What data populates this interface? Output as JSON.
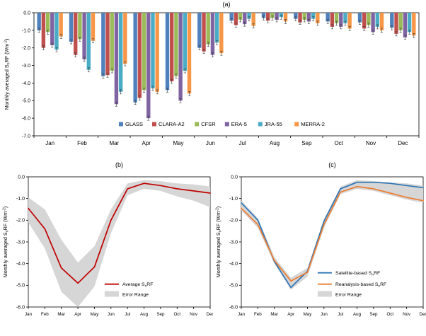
{
  "figure": {
    "background": "#ffffff",
    "axis_color": "#000000",
    "error_bar_color": "#3a3a3a"
  },
  "chart_data": [
    {
      "id": "a",
      "type": "bar",
      "title": "(a)",
      "ylabel": "Monthly averaged S_{n}RF (Wm^{-2})",
      "ylim": [
        0,
        -7
      ],
      "ytick_step": 1,
      "grid": false,
      "legend_position": "inside-bottom-center",
      "categories": [
        "Jan",
        "Feb",
        "Mar",
        "Apr",
        "May",
        "Jun",
        "Jul",
        "Aug",
        "Sep",
        "Oct",
        "Nov",
        "Dec"
      ],
      "bar_error": 0.12,
      "series": [
        {
          "name": "GLASS",
          "color": "#4F81BD",
          "values": [
            -1.0,
            -1.65,
            -3.6,
            -5.1,
            -4.4,
            -2.0,
            -0.45,
            -0.3,
            -0.35,
            -0.5,
            -0.55,
            -0.85
          ]
        },
        {
          "name": "CLARA-A2",
          "color": "#C0504D",
          "values": [
            -2.0,
            -2.4,
            -3.55,
            -4.85,
            -3.9,
            -2.2,
            -0.7,
            -0.45,
            -0.55,
            -0.8,
            -0.9,
            -1.2
          ]
        },
        {
          "name": "CFSR",
          "color": "#9BBB59",
          "values": [
            -1.1,
            -1.5,
            -3.3,
            -4.4,
            -3.6,
            -1.8,
            -0.4,
            -0.3,
            -0.4,
            -0.6,
            -0.7,
            -1.0
          ]
        },
        {
          "name": "ERA-5",
          "color": "#8064A2",
          "values": [
            -1.85,
            -2.65,
            -5.2,
            -6.0,
            -5.0,
            -2.4,
            -0.65,
            -0.4,
            -0.5,
            -0.8,
            -1.1,
            -1.4
          ]
        },
        {
          "name": "JRA-55",
          "color": "#4BACC6",
          "values": [
            -2.1,
            -3.25,
            -4.5,
            -4.3,
            -3.3,
            -1.7,
            -0.35,
            -0.25,
            -0.35,
            -0.6,
            -0.8,
            -1.1
          ]
        },
        {
          "name": "MERRA-2",
          "color": "#F79646",
          "values": [
            -1.35,
            -1.6,
            -2.9,
            -4.5,
            -4.6,
            -2.3,
            -0.75,
            -0.5,
            -0.6,
            -0.9,
            -1.0,
            -1.3
          ]
        }
      ]
    },
    {
      "id": "b",
      "type": "line",
      "title": "(b)",
      "ylabel": "Monthly averaged S_{n}RF (Wm^{-2})",
      "ylim": [
        0,
        -6
      ],
      "ytick_step": 1,
      "grid": false,
      "legend_position": "inside-right-bottom",
      "categories": [
        "Jan",
        "Feb",
        "Mar",
        "Apr",
        "May",
        "Jun",
        "Jul",
        "Aug",
        "Sep",
        "Oct",
        "Nov",
        "Dec"
      ],
      "band": {
        "label": "Error Range",
        "color": "#D6D6D6",
        "upper": [
          -0.95,
          -1.5,
          -2.9,
          -3.95,
          -3.2,
          -1.5,
          -0.3,
          -0.15,
          -0.2,
          -0.3,
          -0.35,
          -0.45
        ],
        "lower": [
          -2.1,
          -3.3,
          -5.3,
          -6.0,
          -5.05,
          -2.6,
          -0.85,
          -0.55,
          -0.65,
          -0.9,
          -1.1,
          -1.4
        ]
      },
      "series": [
        {
          "name": "Average S_{n}RF",
          "color": "#C00000",
          "values": [
            -1.45,
            -2.4,
            -4.2,
            -4.9,
            -4.15,
            -2.0,
            -0.55,
            -0.3,
            -0.4,
            -0.55,
            -0.65,
            -0.75
          ]
        }
      ]
    },
    {
      "id": "c",
      "type": "line",
      "title": "(c)",
      "ylabel": "Monthly averaged S_{n}RF (Wm^{-2})",
      "ylim": [
        0,
        -6
      ],
      "ytick_step": 1,
      "grid": false,
      "legend_position": "inside-right-bottom",
      "categories": [
        "Jan",
        "Feb",
        "Mar",
        "Apr",
        "May",
        "Jun",
        "Jul",
        "Aug",
        "Sep",
        "Oct",
        "Nov",
        "Dec"
      ],
      "band": {
        "label": "Error Range",
        "color": "#D6D6D6",
        "upper": [
          -1.1,
          -1.9,
          -3.7,
          -4.65,
          -4.2,
          -1.95,
          -0.45,
          -0.15,
          -0.2,
          -0.25,
          -0.3,
          -0.4
        ],
        "lower": [
          -1.55,
          -2.35,
          -4.0,
          -5.2,
          -4.6,
          -2.35,
          -0.8,
          -0.55,
          -0.65,
          -0.85,
          -1.05,
          -1.2
        ]
      },
      "series": [
        {
          "name": "Satellite-based S_{n}RF",
          "color": "#2E75B6",
          "values": [
            -1.2,
            -2.0,
            -3.9,
            -5.1,
            -4.35,
            -2.05,
            -0.55,
            -0.25,
            -0.25,
            -0.3,
            -0.4,
            -0.5
          ]
        },
        {
          "name": "Reanalysis-based S_{n}RF",
          "color": "#ED7D31",
          "values": [
            -1.45,
            -2.2,
            -3.85,
            -4.8,
            -4.4,
            -2.2,
            -0.7,
            -0.45,
            -0.55,
            -0.75,
            -0.95,
            -1.1
          ]
        }
      ]
    }
  ]
}
